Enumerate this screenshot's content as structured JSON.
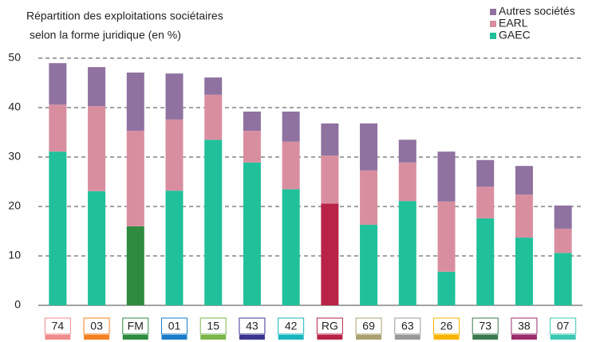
{
  "chart_data": {
    "type": "stacked_bar",
    "title": [
      "Répartition des exploitations sociétaires",
      "selon la forme juridique (en %)"
    ],
    "categories": [
      "74",
      "03",
      "FM",
      "01",
      "15",
      "43",
      "42",
      "RG",
      "69",
      "63",
      "26",
      "73",
      "38",
      "07"
    ],
    "category_colors": [
      "#f28b8b",
      "#f5801f",
      "#2e8b40",
      "#1a7cc8",
      "#7ab648",
      "#3a3591",
      "#1ab6c0",
      "#b92348",
      "#a8a070",
      "#999999",
      "#f8b400",
      "#3a7a50",
      "#9b2b6e",
      "#3cc8b4"
    ],
    "series": [
      {
        "name": "GAEC",
        "color": "#20c09a",
        "colors": [
          "#20c09a",
          "#20c09a",
          "#2e8b40",
          "#20c09a",
          "#20c09a",
          "#20c09a",
          "#20c09a",
          "#b92348",
          "#20c09a",
          "#20c09a",
          "#20c09a",
          "#20c09a",
          "#20c09a",
          "#20c09a"
        ],
        "values": [
          31.1,
          23.1,
          16.0,
          23.2,
          33.5,
          28.9,
          23.5,
          20.6,
          16.3,
          21.1,
          6.8,
          17.6,
          13.7,
          10.6
        ]
      },
      {
        "name": "EARL",
        "color": "#d98ea0",
        "values": [
          9.5,
          17.2,
          19.3,
          14.4,
          9.1,
          6.4,
          9.6,
          9.7,
          11.0,
          7.8,
          14.2,
          6.4,
          8.7,
          4.9
        ]
      },
      {
        "name": "Autres sociétés",
        "color": "#8f72a0",
        "values": [
          8.4,
          7.9,
          11.8,
          9.3,
          3.5,
          3.9,
          6.1,
          6.5,
          9.5,
          4.6,
          10.1,
          5.4,
          5.8,
          4.7
        ]
      }
    ],
    "ylim": [
      0,
      50
    ],
    "yticks": [
      0,
      10,
      20,
      30,
      40,
      50
    ],
    "grid": true,
    "legend": "top-right"
  }
}
